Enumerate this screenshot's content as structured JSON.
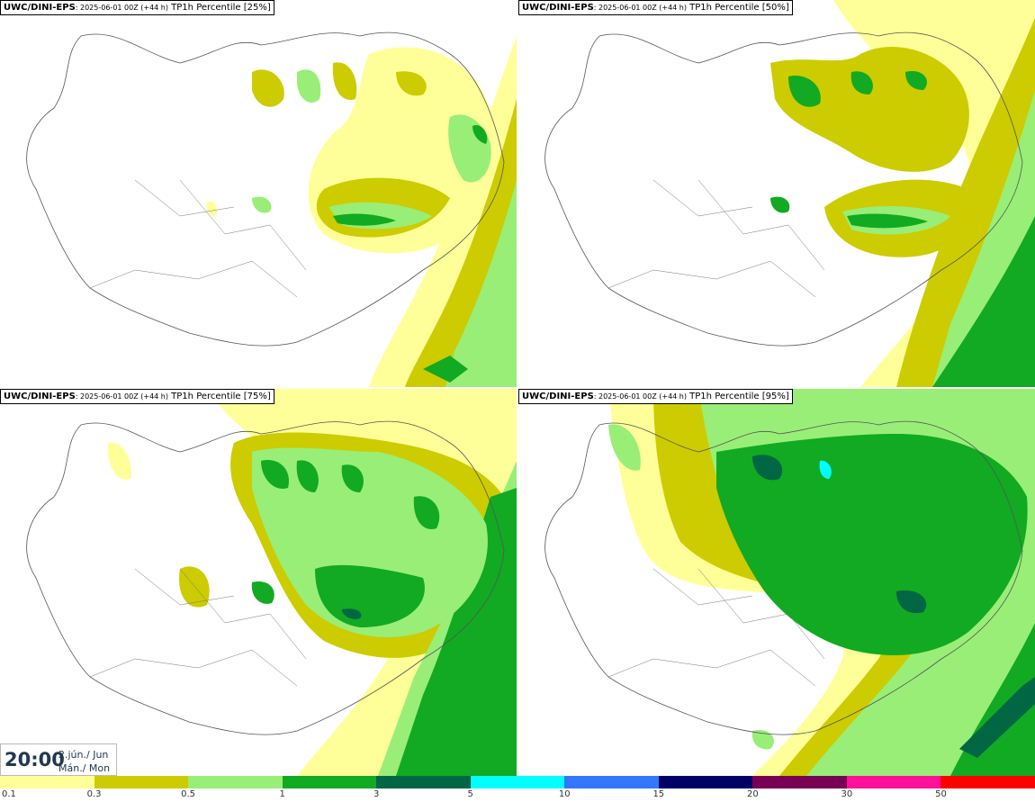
{
  "panels": [
    {
      "source": "UWC/DINI-EPS",
      "run": ": 2025-06-01 00Z (+44 h)",
      "field": "TP1h Percentile [25%]"
    },
    {
      "source": "UWC/DINI-EPS",
      "run": ": 2025-06-01 00Z (+44 h)",
      "field": "TP1h Percentile [50%]"
    },
    {
      "source": "UWC/DINI-EPS",
      "run": ": 2025-06-01 00Z (+44 h)",
      "field": "TP1h Percentile [75%]"
    },
    {
      "source": "UWC/DINI-EPS",
      "run": ": 2025-06-01 00Z (+44 h)",
      "field": "TP1h Percentile [95%]"
    }
  ],
  "valid_time": {
    "time": "20:00",
    "date_line1": "2.jún./ Jun",
    "date_line2": "Mán./ Mon"
  },
  "legend": {
    "labels": [
      "0.1",
      "0.3",
      "0.5",
      "1",
      "3",
      "5",
      "10",
      "15",
      "20",
      "30",
      "50"
    ],
    "colors": [
      "#ffff99",
      "#cccc00",
      "#99ee77",
      "#11aa22",
      "#006644",
      "#00ffff",
      "#3377ff",
      "#000066",
      "#770055",
      "#ff1199",
      "#ff0000"
    ]
  },
  "colors": {
    "land_outline": "#555555",
    "sea": "#ffffff"
  }
}
